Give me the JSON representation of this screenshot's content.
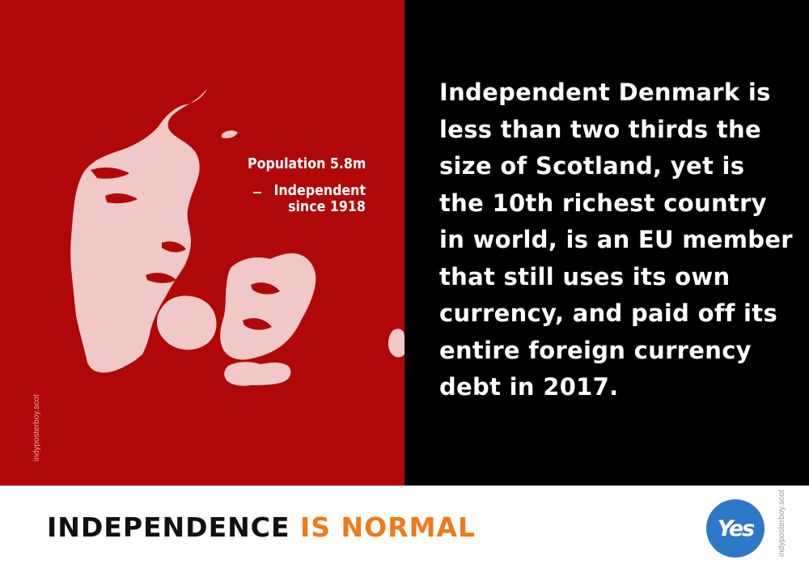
{
  "map": {
    "population_label": "Population 5.8m",
    "independent_line1": "Independent",
    "independent_line2": "since 1918"
  },
  "credit": "indyposterboy.scot",
  "body_text": "Independent Denmark is less than two thirds the size of Scotland, yet is the 10th richest country in world, is an EU member that still uses its own currency, and paid off its entire foreign currency debt in 2017.",
  "footer": {
    "slogan_part1": "INDEPENDENCE ",
    "slogan_part2": "IS NORMAL",
    "logo_text": "Yes",
    "credit": "indyposterboy.scot"
  },
  "colors": {
    "left_panel": "#b00808",
    "right_panel": "#000000",
    "map_fill": "#f0c8c8",
    "slogan_accent": "#f07a1a",
    "logo_blue": "#2e78c8"
  }
}
